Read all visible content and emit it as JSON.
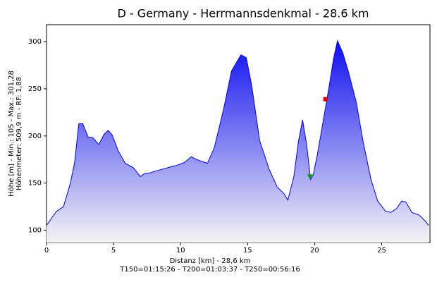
{
  "chart_data": {
    "type": "area",
    "title": "D - Germany - Herrmannsdenkmal - 28.6 km",
    "y_label_lines": [
      "Höhe [m] - Min.: 105 - Max.: 301,28",
      "Höhenmeter: 509,9 m - RF: 1,88"
    ],
    "x_label_lines": [
      "Distanz [km] - 28,6 km",
      "T150=01:15:26 - T200=01:03:37 - T250=00:56:16"
    ],
    "x": [
      0,
      0.73,
      1.26,
      1.78,
      2.1,
      2.41,
      2.7,
      3.1,
      3.46,
      3.9,
      4.3,
      4.6,
      4.9,
      5.35,
      5.87,
      6.5,
      7.0,
      7.3,
      7.75,
      8.18,
      8.7,
      9.2,
      9.75,
      10.3,
      10.8,
      11.2,
      12.0,
      12.5,
      13.2,
      13.8,
      14.5,
      14.9,
      15.3,
      15.9,
      16.6,
      17.2,
      17.7,
      18.0,
      18.45,
      18.8,
      19.1,
      19.4,
      19.7,
      19.9,
      20.2,
      20.65,
      21.1,
      21.4,
      21.7,
      22.1,
      22.5,
      23.1,
      23.6,
      24.2,
      24.7,
      25.3,
      25.7,
      26.1,
      26.5,
      26.8,
      27.25,
      27.8,
      28.3,
      28.5
    ],
    "series": [
      {
        "color": "#0000f0",
        "values": [
          105,
          120,
          125,
          150,
          172,
          213,
          213,
          199,
          198,
          191,
          202,
          206,
          201,
          184,
          171,
          166,
          157,
          160,
          161,
          163,
          165,
          167,
          169,
          172,
          178,
          175,
          171,
          187,
          228,
          269,
          286,
          283,
          254,
          195,
          165,
          146,
          139,
          132,
          157,
          195,
          217,
          191,
          154,
          159,
          180,
          217,
          254,
          281,
          301,
          288,
          269,
          236,
          195,
          154,
          131,
          120,
          119,
          123,
          131,
          130,
          119,
          116,
          109,
          105
        ]
      }
    ],
    "markers": [
      {
        "x": 20.8,
        "y": 239,
        "color": "#e00000",
        "shape": "square"
      },
      {
        "x": 19.65,
        "y": 157,
        "color": "#00a000",
        "shape": "triangle"
      }
    ],
    "xlim": [
      0,
      28.6
    ],
    "xticks": [
      0,
      5,
      10,
      15,
      20,
      25
    ],
    "ylim": [
      87,
      318
    ],
    "yticks": [
      100,
      150,
      200,
      250,
      300
    ],
    "grid": false
  }
}
